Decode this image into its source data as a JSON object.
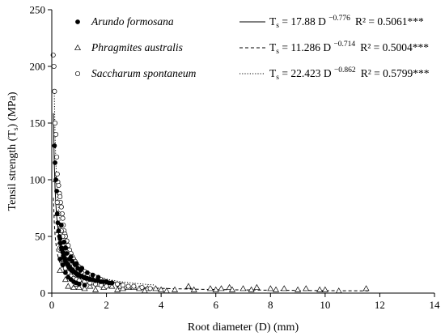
{
  "chart_data": {
    "type": "scatter",
    "xlabel": {
      "main": "Root diameter (D) (mm)"
    },
    "ylabel": {
      "pre": "Tensil strength (T",
      "sub": "s",
      "post": ") (MPa)"
    },
    "xlim": [
      0,
      14
    ],
    "ylim": [
      0,
      250
    ],
    "xticks": [
      0,
      2,
      4,
      6,
      8,
      10,
      12,
      14
    ],
    "yticks": [
      0,
      50,
      100,
      150,
      200,
      250
    ],
    "grid": false,
    "legend_position": "top-right",
    "series": [
      {
        "name": "Arundo formosana",
        "marker": "filled-circle",
        "line_style": "solid",
        "equation": {
          "lhs": "T",
          "lhs_sub": "s",
          "body": " = 17.88 D ",
          "exp": "−0.776",
          "r2": "R² = 0.5061***"
        },
        "fit": {
          "a": 17.88,
          "b": -0.776
        },
        "points": [
          [
            0.1,
            130
          ],
          [
            0.12,
            115
          ],
          [
            0.15,
            100
          ],
          [
            0.18,
            90
          ],
          [
            0.2,
            70
          ],
          [
            0.22,
            62
          ],
          [
            0.25,
            55
          ],
          [
            0.28,
            50
          ],
          [
            0.3,
            48
          ],
          [
            0.32,
            44
          ],
          [
            0.35,
            40
          ],
          [
            0.38,
            38
          ],
          [
            0.4,
            36
          ],
          [
            0.42,
            33
          ],
          [
            0.45,
            31
          ],
          [
            0.48,
            30
          ],
          [
            0.5,
            28
          ],
          [
            0.52,
            27
          ],
          [
            0.55,
            26
          ],
          [
            0.58,
            25
          ],
          [
            0.6,
            24
          ],
          [
            0.62,
            23
          ],
          [
            0.65,
            22
          ],
          [
            0.68,
            22
          ],
          [
            0.7,
            21
          ],
          [
            0.72,
            20
          ],
          [
            0.75,
            20
          ],
          [
            0.78,
            19
          ],
          [
            0.8,
            19
          ],
          [
            0.85,
            18
          ],
          [
            0.9,
            17
          ],
          [
            0.95,
            16
          ],
          [
            1.0,
            16
          ],
          [
            1.05,
            15
          ],
          [
            1.1,
            15
          ],
          [
            1.15,
            14
          ],
          [
            1.2,
            14
          ],
          [
            1.25,
            13
          ],
          [
            1.3,
            13
          ],
          [
            1.4,
            12
          ],
          [
            1.5,
            12
          ],
          [
            1.6,
            11
          ],
          [
            1.7,
            11
          ],
          [
            1.8,
            10
          ],
          [
            1.9,
            10
          ],
          [
            2.0,
            10
          ],
          [
            2.1,
            9
          ],
          [
            2.2,
            9
          ],
          [
            0.35,
            60
          ],
          [
            0.45,
            45
          ],
          [
            0.55,
            35
          ],
          [
            0.65,
            30
          ],
          [
            0.75,
            28
          ],
          [
            0.85,
            25
          ],
          [
            0.95,
            22
          ],
          [
            1.05,
            20
          ],
          [
            0.4,
            25
          ],
          [
            0.5,
            18
          ],
          [
            0.6,
            14
          ],
          [
            0.7,
            12
          ],
          [
            0.8,
            10
          ],
          [
            0.9,
            9
          ],
          [
            1.0,
            8
          ],
          [
            1.2,
            7
          ],
          [
            0.3,
            30
          ],
          [
            0.5,
            40
          ],
          [
            0.7,
            32
          ],
          [
            0.9,
            26
          ],
          [
            1.1,
            22
          ],
          [
            1.3,
            18
          ],
          [
            1.5,
            16
          ],
          [
            1.7,
            14
          ]
        ]
      },
      {
        "name": "Phragmites australis",
        "marker": "open-triangle",
        "line_style": "dashed",
        "equation": {
          "lhs": "T",
          "lhs_sub": "s",
          "body": " = 11.286 D ",
          "exp": "−0.714",
          "r2": "R² = 0.5004***"
        },
        "fit": {
          "a": 11.286,
          "b": -0.714
        },
        "points": [
          [
            0.15,
            100
          ],
          [
            0.2,
            70
          ],
          [
            0.25,
            55
          ],
          [
            0.3,
            45
          ],
          [
            0.35,
            38
          ],
          [
            0.4,
            32
          ],
          [
            0.45,
            28
          ],
          [
            0.5,
            25
          ],
          [
            0.55,
            22
          ],
          [
            0.6,
            20
          ],
          [
            0.7,
            18
          ],
          [
            0.8,
            16
          ],
          [
            0.9,
            14
          ],
          [
            1.0,
            13
          ],
          [
            1.1,
            12
          ],
          [
            1.2,
            11
          ],
          [
            1.3,
            10
          ],
          [
            1.5,
            9
          ],
          [
            1.7,
            8
          ],
          [
            2.0,
            7
          ],
          [
            2.2,
            6
          ],
          [
            2.5,
            6
          ],
          [
            2.8,
            5
          ],
          [
            3.0,
            5
          ],
          [
            3.2,
            4
          ],
          [
            3.5,
            4
          ],
          [
            3.8,
            4
          ],
          [
            4.0,
            3
          ],
          [
            4.5,
            3
          ],
          [
            5.0,
            6
          ],
          [
            5.2,
            3
          ],
          [
            5.8,
            4
          ],
          [
            6.0,
            3
          ],
          [
            6.2,
            4
          ],
          [
            6.5,
            5
          ],
          [
            6.6,
            3
          ],
          [
            7.0,
            4
          ],
          [
            7.3,
            3
          ],
          [
            7.5,
            5
          ],
          [
            8.0,
            4
          ],
          [
            8.2,
            3
          ],
          [
            8.5,
            4
          ],
          [
            9.0,
            3
          ],
          [
            9.3,
            4
          ],
          [
            9.8,
            3
          ],
          [
            10.0,
            3
          ],
          [
            10.5,
            2
          ],
          [
            11.5,
            4
          ],
          [
            0.8,
            5
          ],
          [
            1.2,
            4
          ],
          [
            1.6,
            3
          ],
          [
            2.4,
            3
          ],
          [
            3.4,
            2
          ],
          [
            4.2,
            2
          ],
          [
            0.6,
            6
          ],
          [
            1.0,
            5
          ],
          [
            0.3,
            20
          ],
          [
            0.5,
            12
          ],
          [
            0.9,
            8
          ],
          [
            1.4,
            6
          ],
          [
            1.9,
            5
          ],
          [
            2.6,
            4
          ]
        ]
      },
      {
        "name": "Saccharum spontaneum",
        "marker": "open-circle",
        "line_style": "dotted",
        "equation": {
          "lhs": "T",
          "lhs_sub": "s",
          "body": " = 22.423 D ",
          "exp": "−0.862",
          "r2": "R² = 0.5799***"
        },
        "fit": {
          "a": 22.423,
          "b": -0.862
        },
        "points": [
          [
            0.05,
            210
          ],
          [
            0.08,
            200
          ],
          [
            0.1,
            178
          ],
          [
            0.12,
            150
          ],
          [
            0.15,
            140
          ],
          [
            0.18,
            120
          ],
          [
            0.2,
            105
          ],
          [
            0.22,
            98
          ],
          [
            0.25,
            95
          ],
          [
            0.28,
            88
          ],
          [
            0.3,
            85
          ],
          [
            0.32,
            80
          ],
          [
            0.35,
            76
          ],
          [
            0.38,
            70
          ],
          [
            0.4,
            66
          ],
          [
            0.42,
            60
          ],
          [
            0.45,
            55
          ],
          [
            0.48,
            52
          ],
          [
            0.5,
            50
          ],
          [
            0.55,
            46
          ],
          [
            0.6,
            42
          ],
          [
            0.65,
            38
          ],
          [
            0.7,
            35
          ],
          [
            0.75,
            32
          ],
          [
            0.8,
            30
          ],
          [
            0.85,
            28
          ],
          [
            0.9,
            26
          ],
          [
            0.95,
            24
          ],
          [
            1.0,
            23
          ],
          [
            1.1,
            21
          ],
          [
            1.2,
            19
          ],
          [
            1.3,
            17
          ],
          [
            1.4,
            16
          ],
          [
            1.5,
            15
          ],
          [
            1.6,
            14
          ],
          [
            1.7,
            13
          ],
          [
            1.8,
            12
          ],
          [
            1.9,
            11
          ],
          [
            2.0,
            10
          ],
          [
            2.2,
            9
          ],
          [
            2.4,
            8
          ],
          [
            2.6,
            7
          ],
          [
            2.8,
            6
          ],
          [
            3.0,
            6
          ],
          [
            3.3,
            5
          ],
          [
            3.6,
            4
          ],
          [
            0.3,
            60
          ],
          [
            0.35,
            55
          ],
          [
            0.4,
            50
          ],
          [
            0.45,
            45
          ],
          [
            0.5,
            40
          ],
          [
            0.55,
            36
          ],
          [
            0.6,
            33
          ],
          [
            0.65,
            30
          ],
          [
            0.7,
            28
          ],
          [
            0.75,
            26
          ],
          [
            0.8,
            24
          ],
          [
            0.9,
            22
          ],
          [
            1.0,
            20
          ],
          [
            1.1,
            18
          ],
          [
            1.2,
            16
          ],
          [
            1.3,
            15
          ],
          [
            0.2,
            80
          ],
          [
            0.25,
            70
          ],
          [
            0.3,
            40
          ],
          [
            0.35,
            30
          ],
          [
            0.4,
            26
          ],
          [
            0.5,
            22
          ],
          [
            0.6,
            18
          ],
          [
            0.7,
            15
          ],
          [
            0.8,
            13
          ],
          [
            0.9,
            12
          ],
          [
            1.0,
            11
          ],
          [
            1.2,
            10
          ],
          [
            1.4,
            9
          ],
          [
            1.6,
            8
          ],
          [
            1.8,
            7
          ],
          [
            2.0,
            6
          ]
        ]
      }
    ]
  }
}
